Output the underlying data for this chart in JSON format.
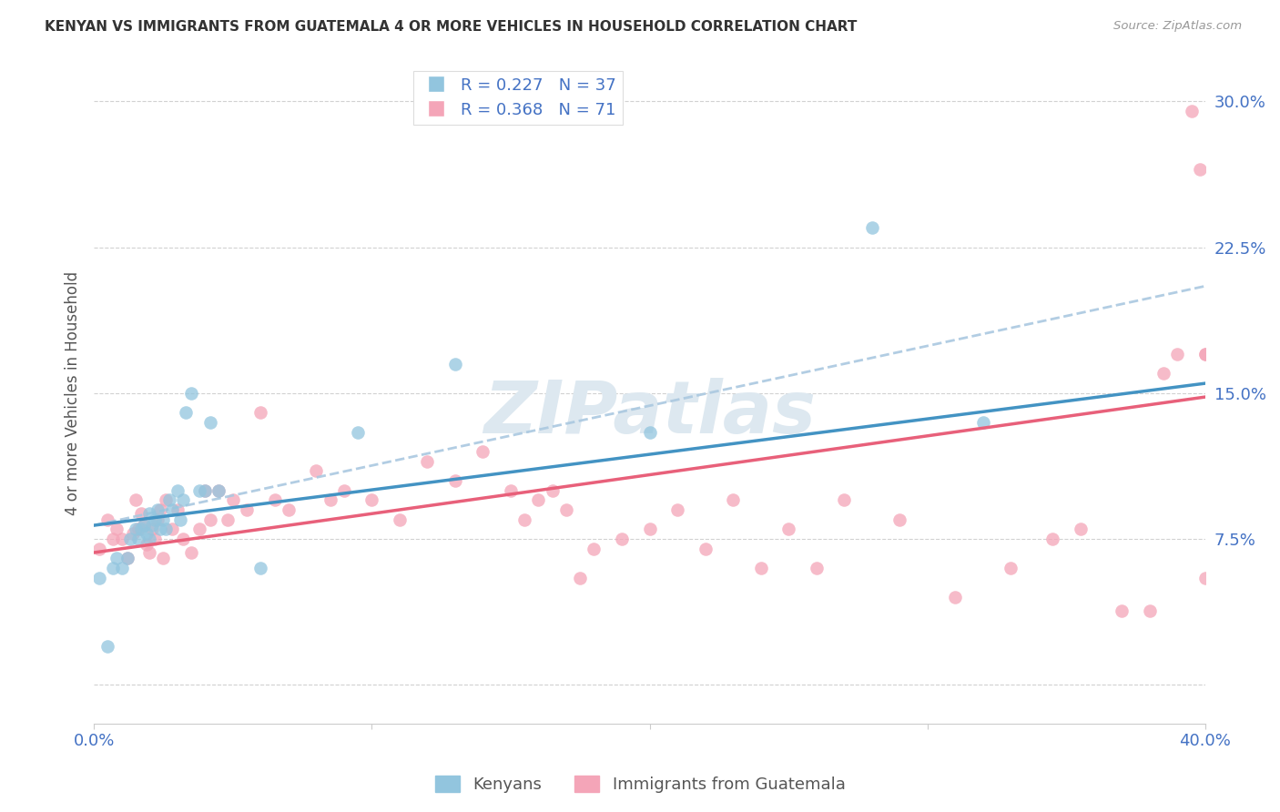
{
  "title": "KENYAN VS IMMIGRANTS FROM GUATEMALA 4 OR MORE VEHICLES IN HOUSEHOLD CORRELATION CHART",
  "source": "Source: ZipAtlas.com",
  "ylabel": "4 or more Vehicles in Household",
  "xlim": [
    0.0,
    0.4
  ],
  "ylim": [
    -0.02,
    0.32
  ],
  "yticks": [
    0.0,
    0.075,
    0.15,
    0.225,
    0.3
  ],
  "ytick_labels": [
    "",
    "7.5%",
    "15.0%",
    "22.5%",
    "30.0%"
  ],
  "xticks": [
    0.0,
    0.1,
    0.2,
    0.3,
    0.4
  ],
  "xtick_labels": [
    "0.0%",
    "",
    "",
    "",
    "40.0%"
  ],
  "blue_color": "#92c5de",
  "pink_color": "#f4a5b8",
  "blue_line_color": "#4393c3",
  "pink_line_color": "#e8607a",
  "dashed_line_color": "#aac8e0",
  "watermark_color": "#dde8f0",
  "blue_points_x": [
    0.002,
    0.005,
    0.007,
    0.008,
    0.01,
    0.012,
    0.013,
    0.015,
    0.016,
    0.017,
    0.018,
    0.019,
    0.02,
    0.02,
    0.021,
    0.022,
    0.023,
    0.024,
    0.025,
    0.026,
    0.027,
    0.028,
    0.03,
    0.031,
    0.032,
    0.033,
    0.035,
    0.038,
    0.04,
    0.042,
    0.045,
    0.06,
    0.095,
    0.13,
    0.2,
    0.28,
    0.32
  ],
  "blue_points_y": [
    0.055,
    0.02,
    0.06,
    0.065,
    0.06,
    0.065,
    0.075,
    0.08,
    0.075,
    0.08,
    0.082,
    0.078,
    0.088,
    0.075,
    0.082,
    0.085,
    0.09,
    0.08,
    0.085,
    0.08,
    0.095,
    0.09,
    0.1,
    0.085,
    0.095,
    0.14,
    0.15,
    0.1,
    0.1,
    0.135,
    0.1,
    0.06,
    0.13,
    0.165,
    0.13,
    0.235,
    0.135
  ],
  "pink_points_x": [
    0.002,
    0.005,
    0.007,
    0.008,
    0.01,
    0.012,
    0.014,
    0.015,
    0.016,
    0.017,
    0.018,
    0.019,
    0.02,
    0.021,
    0.022,
    0.023,
    0.024,
    0.025,
    0.026,
    0.028,
    0.03,
    0.032,
    0.035,
    0.038,
    0.04,
    0.042,
    0.045,
    0.048,
    0.05,
    0.055,
    0.06,
    0.065,
    0.07,
    0.08,
    0.085,
    0.09,
    0.1,
    0.11,
    0.12,
    0.13,
    0.14,
    0.15,
    0.155,
    0.16,
    0.165,
    0.17,
    0.175,
    0.18,
    0.19,
    0.2,
    0.21,
    0.22,
    0.23,
    0.24,
    0.25,
    0.26,
    0.27,
    0.29,
    0.31,
    0.33,
    0.345,
    0.355,
    0.37,
    0.38,
    0.385,
    0.39,
    0.395,
    0.398,
    0.4,
    0.4,
    0.4
  ],
  "pink_points_y": [
    0.07,
    0.085,
    0.075,
    0.08,
    0.075,
    0.065,
    0.078,
    0.095,
    0.08,
    0.088,
    0.082,
    0.072,
    0.068,
    0.08,
    0.075,
    0.085,
    0.09,
    0.065,
    0.095,
    0.08,
    0.09,
    0.075,
    0.068,
    0.08,
    0.1,
    0.085,
    0.1,
    0.085,
    0.095,
    0.09,
    0.14,
    0.095,
    0.09,
    0.11,
    0.095,
    0.1,
    0.095,
    0.085,
    0.115,
    0.105,
    0.12,
    0.1,
    0.085,
    0.095,
    0.1,
    0.09,
    0.055,
    0.07,
    0.075,
    0.08,
    0.09,
    0.07,
    0.095,
    0.06,
    0.08,
    0.06,
    0.095,
    0.085,
    0.045,
    0.06,
    0.075,
    0.08,
    0.038,
    0.038,
    0.16,
    0.17,
    0.295,
    0.265,
    0.17,
    0.17,
    0.055
  ],
  "blue_line_x0": 0.0,
  "blue_line_y0": 0.082,
  "blue_line_x1": 0.4,
  "blue_line_y1": 0.155,
  "pink_line_x0": 0.0,
  "pink_line_y0": 0.068,
  "pink_line_x1": 0.4,
  "pink_line_y1": 0.148,
  "dash_line_x0": 0.0,
  "dash_line_y0": 0.082,
  "dash_line_x1": 0.4,
  "dash_line_y1": 0.205
}
